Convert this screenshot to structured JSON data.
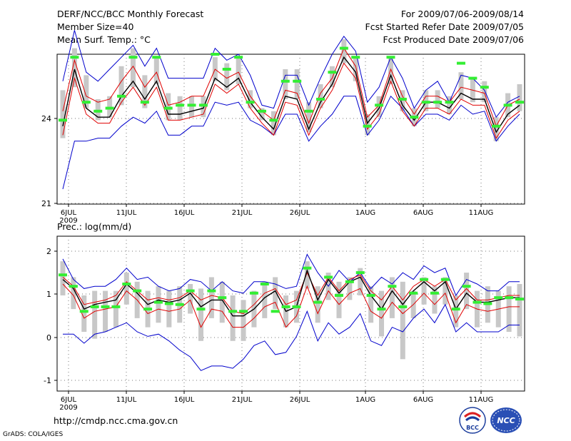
{
  "header": {
    "title": "DERF/NCC/BCC Monthly Forecast",
    "member_size": "Member Size=40",
    "variable": "Mean Surf. Temp.: °C",
    "period": "For 2009/07/06-2009/08/14",
    "started": "Fcst Started Refer Date 2009/07/05",
    "produced": "Fcst Produced Date 2009/07/06"
  },
  "footer": {
    "url": "http://cmdp.ncc.cma.gov.cn",
    "grads": "GrADS: COLA/IGES"
  },
  "logos": {
    "bcc": "BCC",
    "ncc": "NCC"
  },
  "colors": {
    "max_min": "#0000cc",
    "ens_mean": "#000000",
    "band": "#e00000",
    "obs_bar": "#c8c8c8",
    "marker": "#33ee33",
    "grid": "#777777"
  },
  "chart_data": [
    {
      "type": "line",
      "title": "Mean Surf. Temp.: °C",
      "x_tick_labels": [
        "6JUL",
        "11JUL",
        "16JUL",
        "21JUL",
        "26JUL",
        "1AUG",
        "6AUG",
        "11AUG"
      ],
      "year_label": "2009",
      "ylim": [
        21,
        26
      ],
      "y_tick_labels": [
        "21",
        "24"
      ],
      "series": [
        {
          "name": "max",
          "values": [
            25.1,
            26.8,
            25.4,
            25.1,
            25.5,
            25.9,
            26.3,
            25.6,
            26.2,
            25.2,
            25.2,
            25.2,
            25.2,
            26.2,
            25.8,
            26.0,
            25.3,
            24.3,
            24.2,
            25.3,
            25.3,
            24.3,
            25.2,
            26.0,
            26.6,
            26.1,
            24.4,
            24.9,
            25.9,
            25.2,
            24.2,
            24.8,
            25.1,
            24.4,
            25.3,
            25.2,
            24.8,
            23.9,
            24.4,
            24.6
          ]
        },
        {
          "name": "upper",
          "values": [
            24.1,
            25.8,
            24.6,
            24.4,
            24.5,
            25.1,
            25.6,
            24.9,
            25.4,
            24.3,
            24.4,
            24.6,
            24.6,
            25.5,
            25.2,
            25.4,
            24.6,
            24.1,
            23.8,
            24.8,
            24.7,
            23.7,
            24.7,
            25.2,
            26.2,
            25.6,
            23.9,
            24.3,
            25.5,
            24.6,
            24.0,
            24.6,
            24.6,
            24.4,
            24.9,
            24.8,
            24.7,
            23.6,
            24.3,
            24.5
          ]
        },
        {
          "name": "mean",
          "values": [
            23.6,
            25.5,
            24.2,
            23.9,
            23.9,
            24.6,
            25.1,
            24.5,
            25.1,
            24.0,
            24.0,
            24.1,
            24.2,
            25.2,
            24.9,
            25.2,
            24.4,
            23.9,
            23.5,
            24.6,
            24.5,
            23.5,
            24.4,
            25.0,
            25.9,
            25.4,
            23.7,
            24.2,
            25.3,
            24.3,
            23.8,
            24.4,
            24.4,
            24.2,
            24.7,
            24.5,
            24.5,
            23.4,
            24.0,
            24.3
          ]
        },
        {
          "name": "lower",
          "values": [
            23.3,
            25.2,
            24.0,
            23.7,
            23.7,
            24.4,
            24.9,
            24.3,
            24.9,
            23.8,
            23.8,
            23.9,
            24.0,
            25.0,
            24.7,
            25.0,
            24.2,
            23.7,
            23.3,
            24.4,
            24.3,
            23.3,
            24.2,
            24.8,
            25.7,
            25.2,
            23.5,
            24.0,
            25.1,
            24.1,
            23.6,
            24.2,
            24.2,
            24.0,
            24.5,
            24.3,
            24.3,
            23.2,
            23.8,
            24.1
          ]
        },
        {
          "name": "min",
          "values": [
            21.5,
            23.1,
            23.1,
            23.2,
            23.2,
            23.6,
            23.9,
            23.7,
            24.1,
            23.3,
            23.3,
            23.6,
            23.6,
            24.4,
            24.3,
            24.4,
            23.8,
            23.6,
            23.3,
            24.0,
            24.0,
            23.1,
            23.6,
            24.0,
            24.6,
            24.6,
            23.3,
            23.8,
            24.6,
            24.2,
            23.6,
            24.0,
            24.0,
            23.8,
            24.3,
            24.0,
            24.1,
            23.1,
            23.6,
            24.0
          ]
        },
        {
          "name": "markers",
          "values": [
            23.8,
            25.9,
            24.4,
            24.1,
            24.2,
            24.6,
            25.9,
            24.4,
            25.9,
            24.2,
            24.3,
            24.3,
            24.3,
            26.0,
            25.5,
            25.9,
            24.4,
            24.1,
            23.8,
            25.1,
            25.1,
            24.1,
            24.5,
            25.4,
            26.2,
            25.9,
            23.6,
            24.3,
            25.9,
            24.5,
            23.9,
            24.4,
            24.4,
            24.4,
            25.7,
            25.2,
            24.9,
            23.6,
            24.3,
            24.4
          ]
        },
        {
          "name": "obs",
          "values": [
            [
              23.2,
              24.8
            ],
            [
              24.9,
              26.2
            ],
            [
              24.2,
              25.3
            ],
            [
              23.8,
              24.5
            ],
            [
              23.9,
              24.6
            ],
            [
              24.3,
              25.6
            ],
            [
              24.9,
              26.2
            ],
            [
              24.2,
              25.3
            ],
            [
              25.0,
              25.9
            ],
            [
              23.8,
              24.7
            ],
            [
              23.8,
              24.6
            ],
            [
              23.9,
              24.6
            ],
            [
              23.9,
              24.6
            ],
            [
              25.1,
              25.9
            ],
            [
              24.8,
              25.7
            ],
            [
              25.0,
              25.9
            ],
            [
              24.2,
              24.8
            ],
            [
              23.8,
              24.2
            ],
            [
              23.3,
              24.1
            ],
            [
              24.5,
              25.5
            ],
            [
              24.5,
              25.5
            ],
            [
              23.4,
              24.4
            ],
            [
              24.2,
              25.0
            ],
            [
              24.9,
              25.6
            ],
            [
              25.7,
              26.5
            ],
            [
              25.1,
              25.9
            ],
            [
              23.3,
              24.0
            ],
            [
              23.9,
              24.6
            ],
            [
              25.0,
              25.9
            ],
            [
              24.1,
              24.8
            ],
            [
              23.6,
              24.2
            ],
            [
              24.1,
              24.8
            ],
            [
              24.2,
              24.8
            ],
            [
              24.0,
              24.6
            ],
            [
              24.5,
              25.4
            ],
            [
              24.4,
              25.2
            ],
            [
              24.4,
              25.1
            ],
            [
              23.1,
              23.9
            ],
            [
              23.9,
              24.7
            ],
            [
              24.1,
              25.0
            ]
          ]
        }
      ]
    },
    {
      "type": "line",
      "title": "Prec.: log(mm/d)",
      "x_tick_labels": [
        "6JUL",
        "11JUL",
        "16JUL",
        "21JUL",
        "26JUL",
        "1AUG",
        "6AUG",
        "11AUG"
      ],
      "year_label": "2009",
      "ylim": [
        -1.2,
        2.2
      ],
      "y_tick_labels": [
        "-1",
        "0",
        "1",
        "2"
      ],
      "series": [
        {
          "name": "max",
          "values": [
            1.7,
            1.25,
            1.05,
            1.1,
            1.1,
            1.25,
            1.5,
            1.25,
            1.3,
            1.1,
            1.0,
            1.05,
            1.25,
            1.2,
            1.0,
            1.2,
            1.0,
            0.95,
            1.2,
            1.2,
            1.15,
            1.05,
            1.1,
            1.8,
            1.4,
            1.1,
            1.45,
            1.2,
            1.4,
            1.05,
            1.3,
            1.15,
            1.4,
            1.25,
            1.55,
            1.4,
            1.5,
            0.9,
            1.25,
            1.15,
            1.0,
            1.0,
            1.2,
            1.2
          ]
        },
        {
          "name": "upper",
          "values": [
            1.3,
            1.1,
            0.7,
            0.75,
            0.8,
            0.9,
            1.2,
            1.0,
            0.8,
            0.85,
            0.8,
            0.85,
            1.0,
            0.8,
            0.9,
            0.85,
            0.55,
            0.5,
            0.7,
            0.95,
            1.05,
            0.7,
            0.8,
            1.4,
            0.9,
            1.3,
            1.0,
            1.25,
            1.35,
            1.0,
            0.8,
            1.1,
            0.8,
            1.1,
            1.25,
            1.1,
            1.25,
            0.8,
            1.05,
            0.8,
            0.8,
            0.85,
            0.9,
            0.9
          ]
        },
        {
          "name": "mean",
          "values": [
            1.25,
            1.05,
            0.6,
            0.7,
            0.75,
            0.8,
            1.15,
            0.95,
            0.7,
            0.8,
            0.75,
            0.8,
            0.95,
            0.65,
            0.8,
            0.8,
            0.45,
            0.45,
            0.6,
            0.85,
            1.0,
            0.55,
            0.65,
            1.45,
            0.8,
            1.25,
            0.95,
            1.2,
            1.3,
            0.9,
            0.6,
            1.0,
            0.7,
            1.0,
            1.2,
            1.0,
            1.2,
            0.6,
            0.95,
            0.75,
            0.75,
            0.8,
            0.85,
            0.85
          ]
        },
        {
          "name": "lower",
          "values": [
            1.15,
            0.9,
            0.4,
            0.55,
            0.6,
            0.65,
            1.0,
            0.8,
            0.5,
            0.6,
            0.55,
            0.6,
            0.8,
            0.2,
            0.6,
            0.55,
            0.2,
            0.2,
            0.4,
            0.65,
            0.75,
            0.2,
            0.45,
            1.1,
            0.5,
            1.0,
            0.7,
            0.95,
            1.05,
            0.55,
            0.4,
            0.75,
            0.5,
            0.7,
            0.95,
            0.7,
            0.95,
            0.3,
            0.7,
            0.6,
            0.55,
            0.6,
            0.65,
            0.65
          ]
        },
        {
          "name": "min",
          "values": [
            0.05,
            0.05,
            -0.15,
            0.05,
            0.1,
            0.2,
            0.3,
            0.1,
            0.0,
            0.05,
            -0.1,
            -0.3,
            -0.45,
            -0.75,
            -0.65,
            -0.65,
            -0.7,
            -0.5,
            -0.2,
            -0.1,
            -0.4,
            -0.35,
            0.0,
            0.55,
            -0.1,
            0.3,
            0.05,
            0.2,
            0.5,
            -0.1,
            -0.2,
            0.2,
            0.1,
            0.4,
            0.6,
            0.3,
            0.7,
            0.1,
            0.3,
            0.1,
            0.1,
            0.1,
            0.25,
            0.25
          ]
        },
        {
          "name": "markers",
          "values": [
            1.35,
            1.1,
            0.55,
            0.65,
            0.65,
            0.65,
            1.15,
            1.0,
            0.6,
            0.75,
            0.72,
            0.7,
            1.0,
            0.6,
            1.0,
            0.85,
            0.55,
            0.55,
            0.95,
            1.15,
            0.55,
            0.65,
            0.65,
            1.5,
            0.75,
            1.3,
            0.9,
            1.2,
            1.4,
            0.9,
            0.6,
            1.1,
            0.65,
            0.95,
            1.25,
            0.95,
            1.25,
            0.6,
            1.1,
            0.75,
            0.72,
            0.85,
            0.85,
            0.82
          ]
        },
        {
          "name": "obs",
          "values": [
            [
              0.9,
              1.65
            ],
            [
              0.6,
              1.3
            ],
            [
              0.1,
              0.9
            ],
            [
              -0.05,
              1.0
            ],
            [
              0.1,
              1.0
            ],
            [
              0.2,
              1.0
            ],
            [
              0.7,
              1.4
            ],
            [
              0.4,
              1.2
            ],
            [
              0.2,
              1.0
            ],
            [
              0.3,
              1.1
            ],
            [
              0.2,
              1.0
            ],
            [
              0.3,
              1.1
            ],
            [
              0.5,
              1.15
            ],
            [
              -0.1,
              1.05
            ],
            [
              0.4,
              1.3
            ],
            [
              0.3,
              1.2
            ],
            [
              -0.1,
              0.9
            ],
            [
              -0.1,
              0.8
            ],
            [
              0.2,
              1.0
            ],
            [
              0.4,
              1.2
            ],
            [
              0.6,
              1.3
            ],
            [
              0.2,
              0.9
            ],
            [
              0.3,
              1.0
            ],
            [
              1.05,
              1.65
            ],
            [
              0.3,
              1.1
            ],
            [
              0.8,
              1.4
            ],
            [
              0.4,
              1.2
            ],
            [
              0.8,
              1.3
            ],
            [
              0.9,
              1.5
            ],
            [
              0.3,
              1.1
            ],
            [
              0.0,
              1.0
            ],
            [
              0.4,
              1.3
            ],
            [
              -0.5,
              1.2
            ],
            [
              0.4,
              1.0
            ],
            [
              0.7,
              1.3
            ],
            [
              0.5,
              1.1
            ],
            [
              0.7,
              1.3
            ],
            [
              0.2,
              0.9
            ],
            [
              0.6,
              1.4
            ],
            [
              0.2,
              1.0
            ],
            [
              0.3,
              1.1
            ],
            [
              0.2,
              1.0
            ],
            [
              0.1,
              1.1
            ],
            [
              0.0,
              1.15
            ]
          ]
        }
      ]
    }
  ]
}
